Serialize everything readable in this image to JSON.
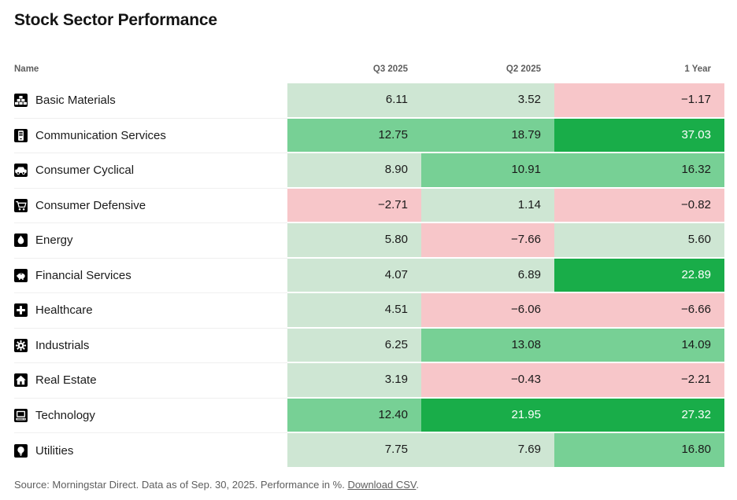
{
  "title": "Stock Sector Performance",
  "chart_data": {
    "type": "table",
    "subtype": "heatmap-table",
    "title": "Stock Sector Performance",
    "unit": "%",
    "columns": [
      "Name",
      "Q3 2025",
      "Q2 2025",
      "1 Year"
    ],
    "rows": [
      {
        "name": "Basic Materials",
        "icon": "basic-materials-icon",
        "values": [
          "6.11",
          "3.52",
          "−1.17"
        ]
      },
      {
        "name": "Communication Services",
        "icon": "communication-services-icon",
        "values": [
          "12.75",
          "18.79",
          "37.03"
        ]
      },
      {
        "name": "Consumer Cyclical",
        "icon": "consumer-cyclical-icon",
        "values": [
          "8.90",
          "10.91",
          "16.32"
        ]
      },
      {
        "name": "Consumer Defensive",
        "icon": "consumer-defensive-icon",
        "values": [
          "−2.71",
          "1.14",
          "−0.82"
        ]
      },
      {
        "name": "Energy",
        "icon": "energy-icon",
        "values": [
          "5.80",
          "−7.66",
          "5.60"
        ]
      },
      {
        "name": "Financial Services",
        "icon": "financial-services-icon",
        "values": [
          "4.07",
          "6.89",
          "22.89"
        ]
      },
      {
        "name": "Healthcare",
        "icon": "healthcare-icon",
        "values": [
          "4.51",
          "−6.06",
          "−6.66"
        ]
      },
      {
        "name": "Industrials",
        "icon": "industrials-icon",
        "values": [
          "6.25",
          "13.08",
          "14.09"
        ]
      },
      {
        "name": "Real Estate",
        "icon": "real-estate-icon",
        "values": [
          "3.19",
          "−0.43",
          "−2.21"
        ]
      },
      {
        "name": "Technology",
        "icon": "technology-icon",
        "values": [
          "12.40",
          "21.95",
          "27.32"
        ]
      },
      {
        "name": "Utilities",
        "icon": "utilities-icon",
        "values": [
          "7.75",
          "7.69",
          "16.80"
        ]
      }
    ],
    "color_scale": {
      "negative": "#f7c6c9",
      "low_0_to_10": "#cee6d3",
      "mid_10_to_20": "#77d095",
      "high_20_plus": "#19ad49",
      "high_text": "#ffffff",
      "default_text": "#1a1a1a",
      "bins": {
        "mid_min": 10,
        "high_min": 20
      }
    }
  },
  "footer": {
    "source_text": "Source: Morningstar Direct. Data as of Sep. 30, 2025. Performance in %. ",
    "link_label": "Download CSV",
    "after_link": "."
  }
}
